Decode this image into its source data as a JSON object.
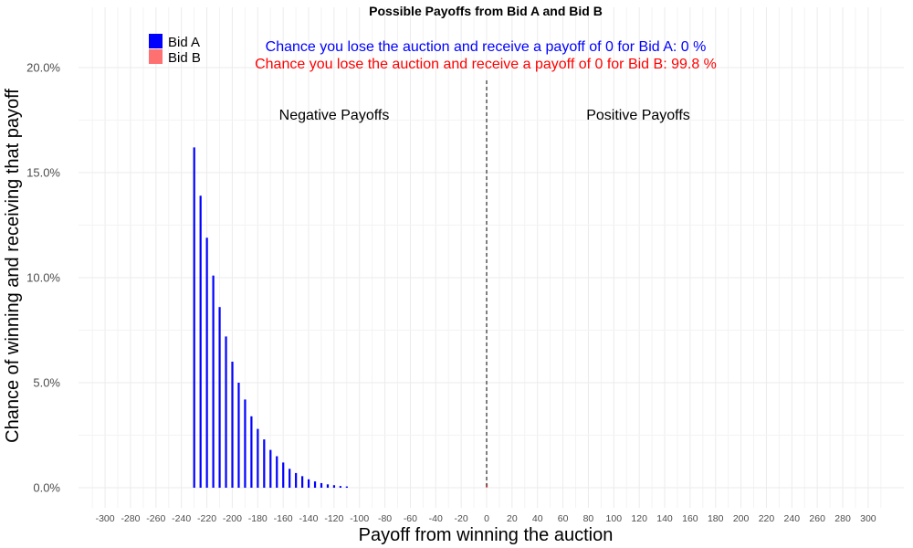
{
  "chart_data": {
    "type": "bar",
    "title": "Possible Payoffs from Bid A and Bid B",
    "xlabel": "Payoff from winning the auction",
    "ylabel": "Chance of winning and receiving that payoff",
    "xlim": [
      -310,
      310
    ],
    "ylim": [
      0,
      0.22
    ],
    "x_ticks": [
      -300,
      -280,
      -260,
      -240,
      -220,
      -200,
      -180,
      -160,
      -140,
      -120,
      -100,
      -80,
      -60,
      -40,
      -20,
      0,
      20,
      40,
      60,
      80,
      100,
      120,
      140,
      160,
      180,
      200,
      220,
      240,
      260,
      280,
      300
    ],
    "y_ticks": [
      0,
      0.05,
      0.1,
      0.15,
      0.2
    ],
    "y_tick_labels": [
      "0.0%",
      "5.0%",
      "10.0%",
      "15.0%",
      "20.0%"
    ],
    "grid": true,
    "legend_position": "top-left",
    "series": [
      {
        "name": "Bid A",
        "color": "#0000FF",
        "x": [
          -230,
          -225,
          -220,
          -215,
          -210,
          -205,
          -200,
          -195,
          -190,
          -185,
          -180,
          -175,
          -170,
          -165,
          -160,
          -155,
          -150,
          -145,
          -140,
          -135,
          -130,
          -125,
          -120,
          -115,
          -110
        ],
        "values": [
          0.162,
          0.139,
          0.119,
          0.101,
          0.086,
          0.072,
          0.06,
          0.05,
          0.042,
          0.034,
          0.028,
          0.023,
          0.018,
          0.015,
          0.012,
          0.009,
          0.007,
          0.0055,
          0.004,
          0.003,
          0.0022,
          0.0016,
          0.0012,
          0.0008,
          0.0006
        ]
      },
      {
        "name": "Bid B",
        "color": "#FF7070",
        "x": [
          0
        ],
        "values": [
          0.002
        ]
      }
    ],
    "reference_line": {
      "x": 0,
      "style": "dashed",
      "color": "#555555"
    },
    "annotations": {
      "bid_a_text": "Chance you lose the auction and receive a payoff of 0 for Bid A:  0 %",
      "bid_b_text": "Chance you lose the auction and receive a payoff of 0 for Bid B:  99.8 %",
      "negative_label": "Negative Payoffs",
      "positive_label": "Positive Payoffs"
    }
  }
}
